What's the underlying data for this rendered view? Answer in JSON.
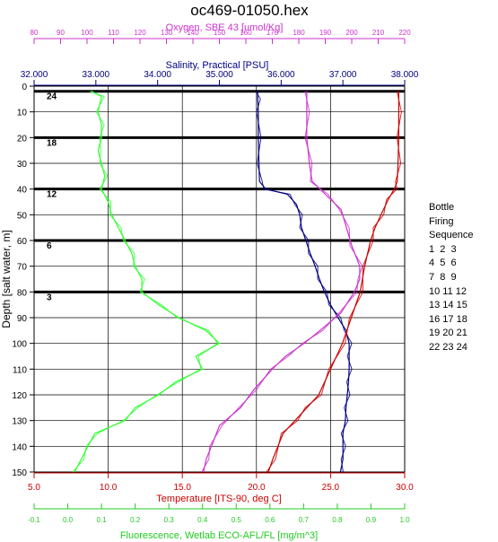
{
  "chart_data": {
    "type": "line",
    "title": "oc469-01050.hex",
    "y_axis": {
      "label": "Depth [salt water, m]",
      "range": [
        0,
        150
      ],
      "ticks": [
        0,
        10,
        20,
        30,
        40,
        50,
        60,
        70,
        80,
        90,
        100,
        110,
        120,
        130,
        140,
        150
      ],
      "reversed": true
    },
    "x_axes": [
      {
        "key": "oxygen",
        "label": "Oxygen, SBE 43 [umol/Kg]",
        "color": "#cc33cc",
        "position": "top-outer",
        "range": [
          80,
          220
        ],
        "ticks": [
          80,
          90,
          100,
          110,
          120,
          130,
          140,
          150,
          160,
          170,
          180,
          190,
          200,
          210,
          220
        ]
      },
      {
        "key": "salinity",
        "label": "Salinity, Practical [PSU]",
        "color": "#000080",
        "position": "top-inner",
        "range": [
          32.0,
          38.0
        ],
        "ticks": [
          "32.000",
          "33.000",
          "34.000",
          "35.000",
          "36.000",
          "37.000",
          "38.000"
        ]
      },
      {
        "key": "temperature",
        "label": "Temperature [ITS-90, deg C]",
        "color": "#cc0000",
        "position": "bottom-inner",
        "range": [
          5.0,
          30.0
        ],
        "ticks": [
          "5.0",
          "10.0",
          "15.0",
          "20.0",
          "25.0",
          "30.0"
        ]
      },
      {
        "key": "fluorescence",
        "label": "Fluorescence, Wetlab ECO-AFL/FL [mg/m^3]",
        "color": "#22cc22",
        "position": "bottom-outer",
        "range": [
          -0.1,
          1.0
        ],
        "ticks": [
          "-0.1",
          "0.0",
          "0.1",
          "0.2",
          "0.3",
          "0.4",
          "0.5",
          "0.6",
          "0.7",
          "0.8",
          "0.9",
          "1.0"
        ]
      }
    ],
    "series": [
      {
        "name": "Fluorescence, Wetlab ECO-AFL/FL [mg/m^3]",
        "axis": "fluorescence",
        "color": "#33ff33",
        "points": [
          [
            0.07,
            2
          ],
          [
            0.1,
            4
          ],
          [
            0.09,
            10
          ],
          [
            0.1,
            15
          ],
          [
            0.1,
            20
          ],
          [
            0.09,
            25
          ],
          [
            0.1,
            30
          ],
          [
            0.11,
            35
          ],
          [
            0.1,
            40
          ],
          [
            0.12,
            45
          ],
          [
            0.13,
            50
          ],
          [
            0.15,
            55
          ],
          [
            0.17,
            60
          ],
          [
            0.19,
            65
          ],
          [
            0.2,
            70
          ],
          [
            0.22,
            75
          ],
          [
            0.22,
            80
          ],
          [
            0.27,
            85
          ],
          [
            0.33,
            90
          ],
          [
            0.41,
            95
          ],
          [
            0.45,
            100
          ],
          [
            0.38,
            105
          ],
          [
            0.4,
            110
          ],
          [
            0.32,
            115
          ],
          [
            0.27,
            120
          ],
          [
            0.2,
            125
          ],
          [
            0.17,
            130
          ],
          [
            0.08,
            135
          ],
          [
            0.06,
            140
          ],
          [
            0.04,
            145
          ],
          [
            0.02,
            150
          ]
        ]
      },
      {
        "name": "Salinity, Practical [PSU]",
        "axis": "salinity",
        "color": "#000080",
        "points": [
          [
            35.62,
            2
          ],
          [
            35.62,
            5
          ],
          [
            35.63,
            10
          ],
          [
            35.63,
            20
          ],
          [
            35.64,
            30
          ],
          [
            35.65,
            37
          ],
          [
            35.75,
            40
          ],
          [
            36.1,
            42
          ],
          [
            36.25,
            46
          ],
          [
            36.3,
            50
          ],
          [
            36.33,
            55
          ],
          [
            36.4,
            60
          ],
          [
            36.47,
            65
          ],
          [
            36.55,
            70
          ],
          [
            36.62,
            75
          ],
          [
            36.7,
            80
          ],
          [
            36.8,
            85
          ],
          [
            36.92,
            90
          ],
          [
            37.05,
            95
          ],
          [
            37.1,
            100
          ],
          [
            37.1,
            105
          ],
          [
            37.1,
            110
          ],
          [
            37.09,
            115
          ],
          [
            37.07,
            120
          ],
          [
            37.05,
            125
          ],
          [
            37.04,
            130
          ],
          [
            37.0,
            135
          ],
          [
            37.0,
            140
          ],
          [
            37.0,
            145
          ],
          [
            36.96,
            150
          ]
        ]
      },
      {
        "name": "Oxygen, SBE 43 [umol/Kg]",
        "axis": "oxygen",
        "color": "#cc33cc",
        "points": [
          [
            183,
            2
          ],
          [
            183,
            10
          ],
          [
            183,
            20
          ],
          [
            184,
            30
          ],
          [
            185,
            37
          ],
          [
            190,
            42
          ],
          [
            196,
            48
          ],
          [
            198,
            55
          ],
          [
            200,
            62
          ],
          [
            203,
            70
          ],
          [
            203,
            75
          ],
          [
            201,
            80
          ],
          [
            196,
            88
          ],
          [
            188,
            95
          ],
          [
            182,
            100
          ],
          [
            175,
            105
          ],
          [
            170,
            110
          ],
          [
            163,
            118
          ],
          [
            158,
            125
          ],
          [
            150,
            132
          ],
          [
            147,
            140
          ],
          [
            145,
            145
          ],
          [
            144,
            150
          ]
        ]
      },
      {
        "name": "Temperature [ITS-90, deg C]",
        "axis": "temperature",
        "color": "#cc0000",
        "points": [
          [
            29.6,
            2
          ],
          [
            29.6,
            10
          ],
          [
            29.6,
            20
          ],
          [
            29.55,
            30
          ],
          [
            29.5,
            37
          ],
          [
            29.3,
            40
          ],
          [
            28.9,
            44
          ],
          [
            28.4,
            50
          ],
          [
            28.0,
            55
          ],
          [
            27.7,
            60
          ],
          [
            27.3,
            70
          ],
          [
            27.0,
            80
          ],
          [
            26.4,
            90
          ],
          [
            25.8,
            100
          ],
          [
            25.0,
            110
          ],
          [
            24.2,
            120
          ],
          [
            23.4,
            125
          ],
          [
            22.6,
            130
          ],
          [
            21.8,
            135
          ],
          [
            21.1,
            145
          ],
          [
            20.8,
            150
          ]
        ]
      }
    ],
    "bottle_depths": [
      2,
      20,
      40,
      60,
      80
    ],
    "bottle_labels": [
      "24",
      "18",
      "12",
      "6",
      "3"
    ],
    "legend": {
      "title_lines": [
        "Bottle",
        "Firing",
        "Sequence"
      ],
      "rows": [
        "1  2  3",
        "4  5  6",
        "7  8  9",
        "10 11 12",
        "13 14 15",
        "16 17 18",
        "19 20 21",
        "22 23 24"
      ]
    },
    "grid": true
  }
}
